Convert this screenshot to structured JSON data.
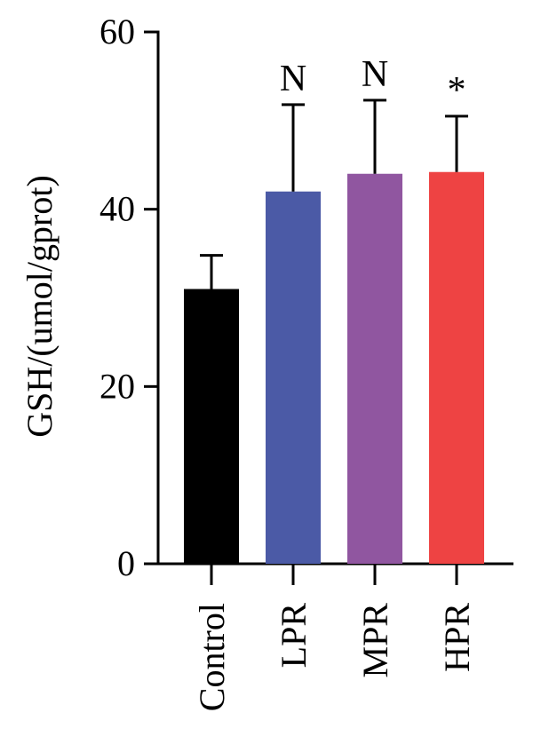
{
  "chart_data": {
    "type": "bar",
    "categories": [
      "Control",
      "LPR",
      "MPR",
      "HPR"
    ],
    "values": [
      31,
      42,
      44,
      44.2
    ],
    "errors": [
      3.8,
      9.8,
      8.3,
      6.3
    ],
    "annotations": [
      "",
      "N",
      "N",
      "*"
    ],
    "colors": [
      "#000000",
      "#4b5aa6",
      "#9056a0",
      "#ee4343"
    ],
    "title": "",
    "xlabel": "",
    "ylabel": "GSH/(umol/gprot)",
    "ylim": [
      0,
      60
    ],
    "yticks": [
      0,
      20,
      40,
      60
    ],
    "ytick_labels": [
      "0",
      "20",
      "40",
      "60"
    ],
    "grid": false,
    "legend": "none"
  }
}
